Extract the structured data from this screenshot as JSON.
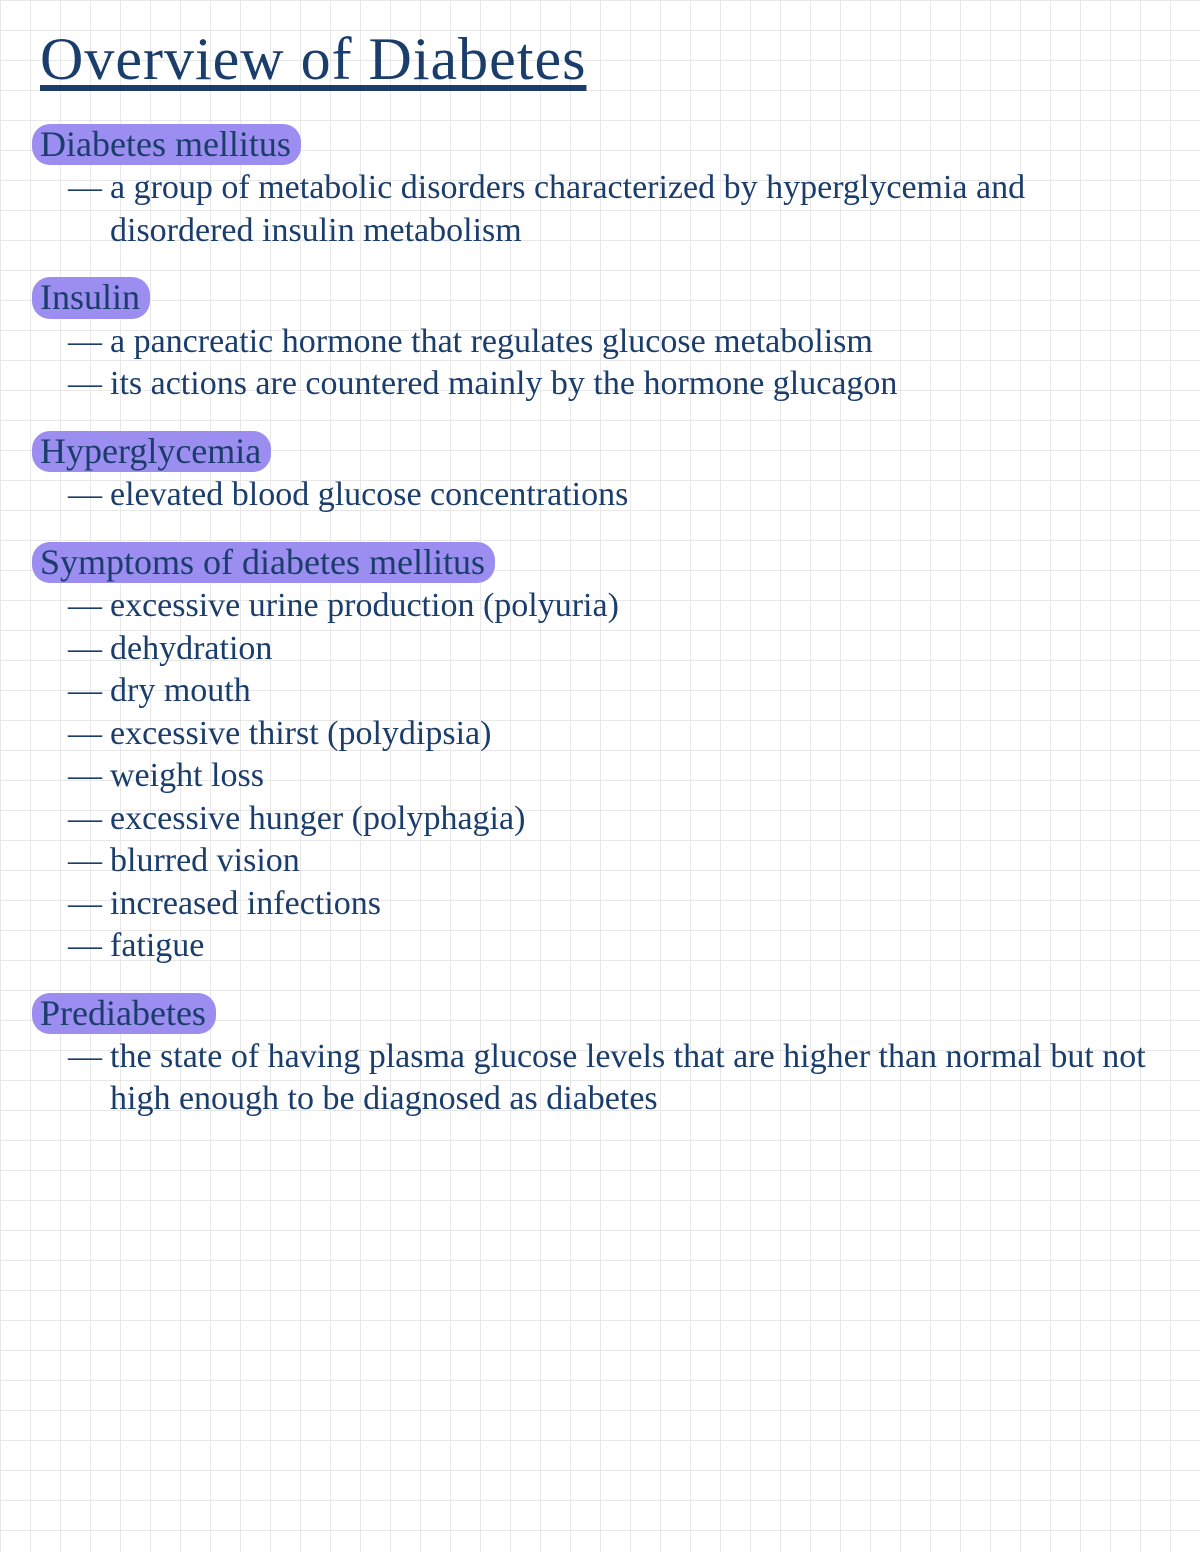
{
  "title": "Overview of Diabetes",
  "colors": {
    "ink": "#1a3d6b",
    "highlight": "#9b8ef0",
    "grid": "#e8e8e8",
    "background": "#ffffff"
  },
  "sections": [
    {
      "heading": "Diabetes mellitus",
      "bullets": [
        "a group of metabolic disorders characterized by hyperglycemia and disordered insulin metabolism"
      ]
    },
    {
      "heading": "Insulin",
      "bullets": [
        "a pancreatic hormone that regulates glucose metabolism",
        "its actions are countered mainly by the hormone glucagon"
      ]
    },
    {
      "heading": "Hyperglycemia",
      "bullets": [
        "elevated blood glucose concentrations"
      ]
    },
    {
      "heading": "Symptoms of diabetes mellitus",
      "bullets": [
        "excessive urine production (polyuria)",
        "dehydration",
        "dry mouth",
        "excessive thirst (polydipsia)",
        "weight loss",
        "excessive hunger (polyphagia)",
        "blurred vision",
        "increased infections",
        "fatigue"
      ]
    },
    {
      "heading": "Prediabetes",
      "bullets": [
        "the state of having plasma glucose levels that are higher than normal but not high enough to be diagnosed as diabetes"
      ]
    }
  ]
}
